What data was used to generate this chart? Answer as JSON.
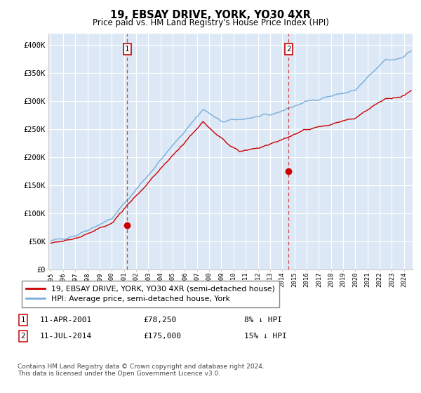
{
  "title": "19, EBSAY DRIVE, YORK, YO30 4XR",
  "subtitle": "Price paid vs. HM Land Registry's House Price Index (HPI)",
  "ylim": [
    0,
    420000
  ],
  "yticks": [
    0,
    50000,
    100000,
    150000,
    200000,
    250000,
    300000,
    350000,
    400000
  ],
  "ytick_labels": [
    "£0",
    "£50K",
    "£100K",
    "£150K",
    "£200K",
    "£250K",
    "£300K",
    "£350K",
    "£400K"
  ],
  "background_color": "#ffffff",
  "plot_bg_color": "#dce8f5",
  "grid_color": "#ffffff",
  "hpi_color": "#7aadd8",
  "price_color": "#cc0000",
  "sale1_x": 2001.28,
  "sale1_price": 78250,
  "sale1_label": "1",
  "sale1_date": "11-APR-2001",
  "sale1_note": "8% ↓ HPI",
  "sale2_x": 2014.53,
  "sale2_price": 175000,
  "sale2_label": "2",
  "sale2_date": "11-JUL-2014",
  "sale2_note": "15% ↓ HPI",
  "legend_line1": "19, EBSAY DRIVE, YORK, YO30 4XR (semi-detached house)",
  "legend_line2": "HPI: Average price, semi-detached house, York",
  "footnote": "Contains HM Land Registry data © Crown copyright and database right 2024.\nThis data is licensed under the Open Government Licence v3.0.",
  "x_start_year": 1995,
  "x_end_year": 2024
}
